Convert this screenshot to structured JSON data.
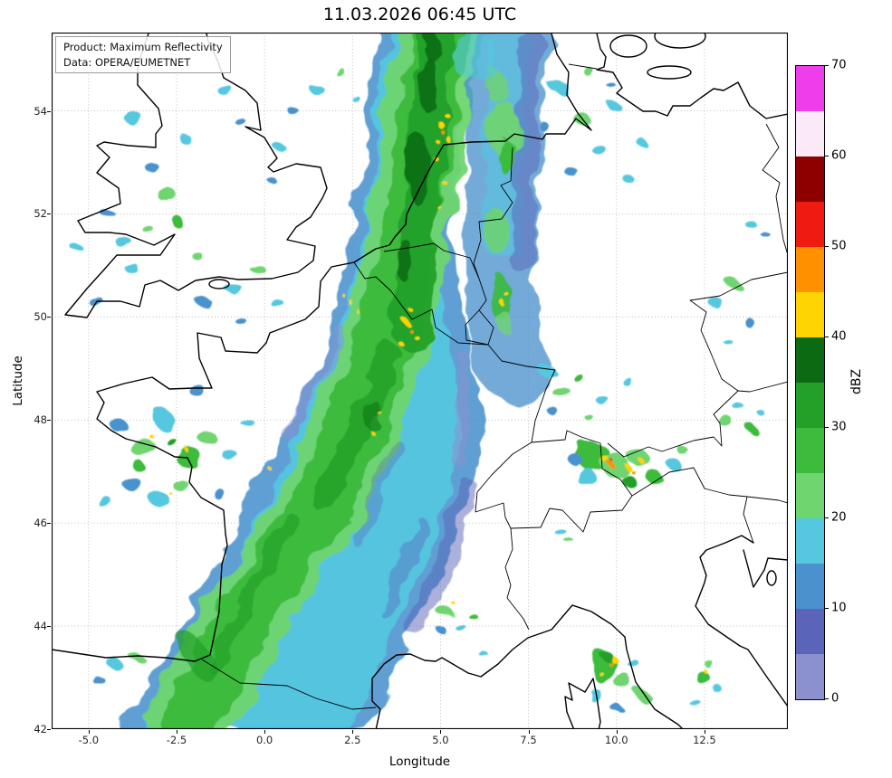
{
  "title": "11.03.2026 06:45 UTC",
  "info_box": {
    "product": "Product: Maximum Reflectivity",
    "data_source": "Data: OPERA/EUMETNET"
  },
  "axes": {
    "xlabel": "Longitude",
    "ylabel": "Latitude",
    "x_ticks": [
      "-5.0",
      "-2.5",
      "0.0",
      "2.5",
      "5.0",
      "7.5",
      "10.0",
      "12.5"
    ],
    "x_tick_lons": [
      -5,
      -2.5,
      0,
      2.5,
      5,
      7.5,
      10,
      12.5
    ],
    "y_ticks": [
      "42",
      "44",
      "46",
      "48",
      "50",
      "52",
      "54"
    ],
    "y_tick_lats": [
      42,
      44,
      46,
      48,
      50,
      52,
      54
    ],
    "lon_range": [
      -6.05,
      14.87
    ],
    "lat_range": [
      42.0,
      55.52
    ]
  },
  "colorbar": {
    "label": "dBZ",
    "min": 0,
    "max": 70,
    "step": 5,
    "tick_values": [
      0,
      10,
      20,
      30,
      40,
      50,
      60,
      70
    ],
    "colors_bottom_to_top": [
      "#8b90cf",
      "#5a64b8",
      "#4a92cd",
      "#55c8e0",
      "#6fd56f",
      "#3cbb3c",
      "#22a028",
      "#0c6b12",
      "#ffd400",
      "#ff9100",
      "#ef1a10",
      "#8e0000",
      "#fbe9f8",
      "#ef3dec"
    ]
  },
  "chart_data": {
    "type": "heatmap",
    "title": "11.03.2026 06:45 UTC",
    "xlabel": "Longitude",
    "ylabel": "Latitude",
    "colorbar_label": "dBZ",
    "xlim": [
      -6.05,
      14.87
    ],
    "ylim": [
      42.0,
      55.52
    ],
    "value_range_dbz": [
      0,
      70
    ],
    "level_step_dbz": 5,
    "grid": "dotted",
    "legend_position": "right-colorbar",
    "features": [
      {
        "kind": "band",
        "desc": "Broad SW-NE precipitation band from northern Spain / SW France (about -2E,43N) across France and Benelux into the North Sea (about 5E,55N); core 20-40 dBZ (greens), fringes 5-15 dBZ (blues)"
      },
      {
        "kind": "band",
        "desc": "Parallel weaker band over western Germany (about 6-7.5E, 49-55.5N), mostly 5-15 dBZ with embedded 20-30 dBZ cells near 6.5E,50.5N and 6.5E,53.5N"
      },
      {
        "kind": "cells",
        "desc": "Embedded 40-45 dBZ cells inside the main band over the Netherlands (4-5.5E, 52-54N) and over NE France / Belgium (2.5-4.5E, 49.5-50.5N)"
      },
      {
        "kind": "cells",
        "desc": "Scattered 10-30 dBZ showers with isolated 40 dBZ over western France / Brittany (-4.5 to -0.5E, 46-49N) and over Wales / SW England"
      },
      {
        "kind": "cells",
        "desc": "Convective cluster near the Alps (9-10.5E, 47-47.6N) with 40-50 dBZ cores"
      },
      {
        "kind": "cells",
        "desc": "Cells near Corsica / Tuscany (9-10.5E, 42-43.5N) with 40-50 dBZ cores; small cluster near 12.8E,43.3N"
      },
      {
        "kind": "cells",
        "desc": "Small isolated cells in the Rhone valley area (4.5-5.5E, 44-45N) and near Denmark (9-11E, 53.5-55N)"
      }
    ]
  }
}
